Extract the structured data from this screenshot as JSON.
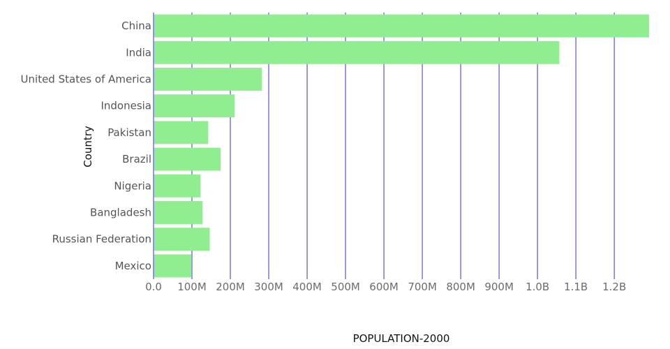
{
  "chart_data": {
    "type": "bar",
    "orientation": "horizontal",
    "xlabel": "POPULATION-2000",
    "ylabel": "Country",
    "categories": [
      "China",
      "India",
      "United States of America",
      "Indonesia",
      "Pakistan",
      "Brazil",
      "Nigeria",
      "Bangladesh",
      "Russian Federation",
      "Mexico"
    ],
    "values": [
      1290550765,
      1056575549,
      282162411,
      211513823,
      142343578,
      174790340,
      122283850,
      127657862,
      146404914,
      98899845
    ],
    "xlim": [
      0,
      1290550765
    ],
    "x_ticks": [
      0,
      100000000,
      200000000,
      300000000,
      400000000,
      500000000,
      600000000,
      700000000,
      800000000,
      900000000,
      1000000000,
      1100000000,
      1200000000
    ],
    "x_tick_labels": [
      "0.0",
      "100M",
      "200M",
      "300M",
      "400M",
      "500M",
      "600M",
      "700M",
      "800M",
      "900M",
      "1.0B",
      "1.1B",
      "1.2B"
    ],
    "grid": "vertical",
    "legend": "none",
    "colors": {
      "bar": "#90ee90",
      "grid": "#7b72e9",
      "axis": "#7b72e9"
    }
  }
}
